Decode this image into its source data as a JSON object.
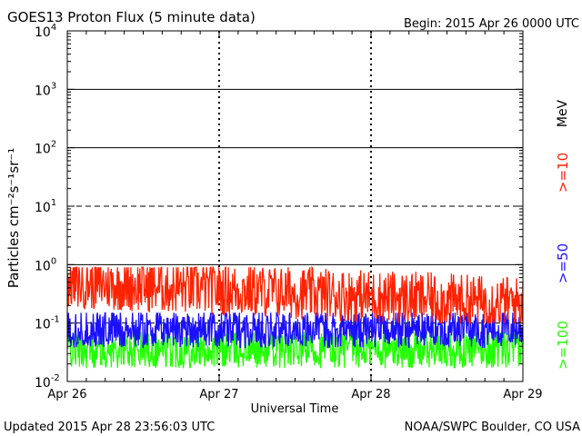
{
  "chart_data": {
    "type": "line",
    "title": "GOES13 Proton Flux (5 minute data)",
    "begin_label": "Begin: 2015 Apr 26 0000 UTC",
    "xlabel": "Universal Time",
    "ylabel": "Particles cm⁻²s⁻¹sr⁻¹",
    "y_scale": "log",
    "ylim": [
      0.01,
      10000
    ],
    "y_ticks": [
      {
        "base": "10",
        "exp": "4"
      },
      {
        "base": "10",
        "exp": "3"
      },
      {
        "base": "10",
        "exp": "2"
      },
      {
        "base": "10",
        "exp": "1"
      },
      {
        "base": "10",
        "exp": "0"
      },
      {
        "base": "10",
        "exp": "-1"
      },
      {
        "base": "10",
        "exp": "-2"
      }
    ],
    "x_ticks": [
      "Apr 26",
      "Apr 27",
      "Apr 28",
      "Apr 29"
    ],
    "xlim": [
      "2015-04-26T00:00Z",
      "2015-04-29T00:00Z"
    ],
    "grid": {
      "solid_at": [
        1000,
        100,
        1
      ],
      "dashed_at": [
        10,
        0.1
      ]
    },
    "units_label": "MeV",
    "series": [
      {
        "name": ">=10",
        "color": "#ff2200",
        "typical_value": 0.35,
        "range": [
          0.1,
          0.9
        ]
      },
      {
        "name": ">=50",
        "color": "#1a10ff",
        "typical_value": 0.08,
        "range": [
          0.03,
          0.15
        ]
      },
      {
        "name": ">=100",
        "color": "#22ff00",
        "typical_value": 0.035,
        "range": [
          0.015,
          0.07
        ]
      }
    ]
  },
  "footer": {
    "updated": "Updated 2015 Apr 28 23:56:03 UTC",
    "credit": "NOAA/SWPC Boulder, CO USA"
  }
}
